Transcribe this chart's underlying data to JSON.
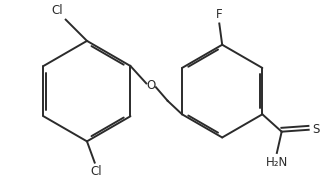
{
  "background_color": "#ffffff",
  "line_color": "#2b2b2b",
  "line_width": 1.4,
  "font_size": 8.5,
  "figsize": [
    3.21,
    1.92
  ],
  "dpi": 100,
  "xlim": [
    0,
    321
  ],
  "ylim": [
    0,
    192
  ]
}
